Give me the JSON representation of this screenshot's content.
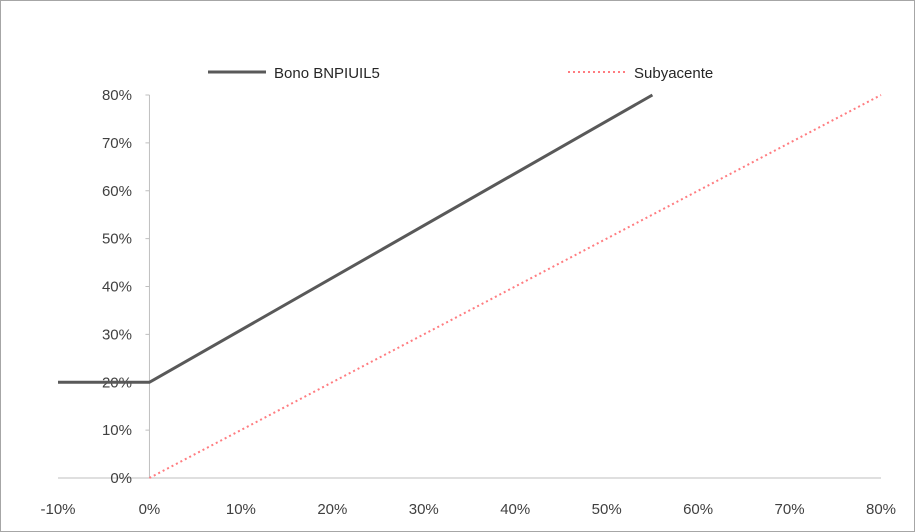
{
  "chart_data": {
    "type": "line",
    "title": "",
    "xlabel": "",
    "ylabel": "",
    "xlim": [
      -0.1,
      0.8
    ],
    "ylim": [
      0,
      0.8
    ],
    "x_ticks": [
      "-10%",
      "0%",
      "10%",
      "20%",
      "30%",
      "40%",
      "50%",
      "60%",
      "70%",
      "80%"
    ],
    "y_ticks": [
      "0%",
      "10%",
      "20%",
      "30%",
      "40%",
      "50%",
      "60%",
      "70%",
      "80%"
    ],
    "grid": false,
    "legend_position": "top",
    "series": [
      {
        "name": "Bono BNPIUIL5",
        "color": "#595959",
        "style": "solid",
        "x": [
          -0.1,
          0.0,
          0.55
        ],
        "y": [
          0.2,
          0.2,
          0.8
        ]
      },
      {
        "name": "Subyacente",
        "color": "#ff7c80",
        "style": "dotted",
        "x": [
          0.0,
          0.8
        ],
        "y": [
          0.0,
          0.8
        ]
      }
    ]
  }
}
